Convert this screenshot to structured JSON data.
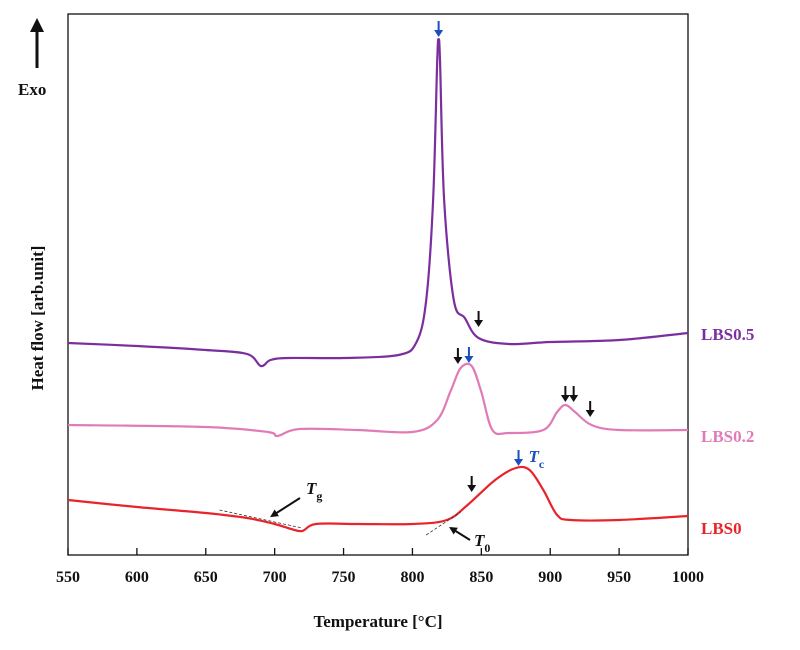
{
  "chart_data": {
    "type": "line",
    "xlabel": "Temperature [°C]",
    "ylabel": "Heat flow  [arb.unit]",
    "xlim": [
      550,
      1000
    ],
    "x_ticks": [
      "550",
      "600",
      "650",
      "700",
      "750",
      "800",
      "850",
      "900",
      "950",
      "1000"
    ],
    "exo_label": "Exo",
    "grid": false,
    "series": [
      {
        "name": "LBS0.5",
        "color": "#7b2f9e",
        "points": [
          [
            550,
            343
          ],
          [
            600,
            346
          ],
          [
            650,
            350
          ],
          [
            680,
            354
          ],
          [
            690,
            366
          ],
          [
            697,
            360
          ],
          [
            710,
            358
          ],
          [
            750,
            358
          ],
          [
            790,
            355
          ],
          [
            803,
            342
          ],
          [
            810,
            300
          ],
          [
            815,
            200
          ],
          [
            818,
            60
          ],
          [
            819,
            40
          ],
          [
            820,
            60
          ],
          [
            823,
            200
          ],
          [
            830,
            300
          ],
          [
            838,
            318
          ],
          [
            848,
            338
          ],
          [
            870,
            344
          ],
          [
            900,
            342
          ],
          [
            950,
            340
          ],
          [
            1000,
            333
          ]
        ],
        "arrows": [
          {
            "x": 819,
            "y_tip": 37,
            "color": "#1a4fbd"
          },
          {
            "x": 848,
            "y_tip": 327,
            "color": "#111111"
          }
        ]
      },
      {
        "name": "LBS0.2",
        "color": "#e07bb8",
        "points": [
          [
            550,
            425
          ],
          [
            650,
            427
          ],
          [
            695,
            432
          ],
          [
            702,
            436
          ],
          [
            718,
            429
          ],
          [
            760,
            430
          ],
          [
            800,
            432
          ],
          [
            818,
            420
          ],
          [
            828,
            390
          ],
          [
            835,
            368
          ],
          [
            843,
            366
          ],
          [
            850,
            392
          ],
          [
            858,
            430
          ],
          [
            870,
            433
          ],
          [
            895,
            430
          ],
          [
            905,
            412
          ],
          [
            911,
            405
          ],
          [
            918,
            412
          ],
          [
            930,
            425
          ],
          [
            950,
            430
          ],
          [
            1000,
            430
          ]
        ],
        "arrows": [
          {
            "x": 833,
            "y_tip": 364,
            "color": "#111111"
          },
          {
            "x": 841,
            "y_tip": 363,
            "color": "#1a4fbd"
          },
          {
            "x": 911,
            "y_tip": 402,
            "color": "#111111"
          },
          {
            "x": 917,
            "y_tip": 402,
            "color": "#111111"
          },
          {
            "x": 929,
            "y_tip": 417,
            "color": "#111111"
          }
        ]
      },
      {
        "name": "LBS0",
        "color": "#e8232a",
        "points": [
          [
            550,
            500
          ],
          [
            600,
            507
          ],
          [
            650,
            513
          ],
          [
            680,
            518
          ],
          [
            700,
            524
          ],
          [
            712,
            529
          ],
          [
            720,
            531
          ],
          [
            730,
            524
          ],
          [
            760,
            524
          ],
          [
            800,
            524
          ],
          [
            825,
            520
          ],
          [
            840,
            505
          ],
          [
            860,
            480
          ],
          [
            875,
            468
          ],
          [
            885,
            470
          ],
          [
            895,
            490
          ],
          [
            905,
            515
          ],
          [
            915,
            520
          ],
          [
            950,
            520
          ],
          [
            1000,
            516
          ]
        ],
        "arrows": [
          {
            "x": 843,
            "y_tip": 492,
            "color": "#111111"
          },
          {
            "x": 877,
            "y_tip": 466,
            "color": "#1a4fbd"
          }
        ]
      }
    ],
    "annotations": [
      {
        "text": "T",
        "sub": "g",
        "target": [
          695,
          518
        ]
      },
      {
        "text": "T",
        "sub": "0",
        "target": [
          822,
          524
        ]
      },
      {
        "text": "T",
        "sub": "c",
        "target": [
          877,
          466
        ]
      }
    ]
  }
}
